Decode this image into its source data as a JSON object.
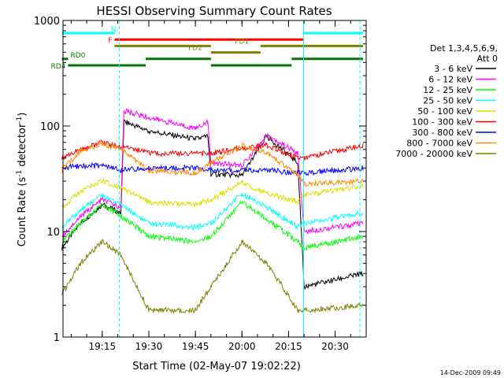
{
  "chart_data": {
    "type": "line",
    "title": "HESSI Observing Summary Count Rates",
    "xlabel": "Start Time (02-May-07 19:02:22)",
    "ylabel_main": "Count Rate (s",
    "ylabel_sup1": "-1",
    "ylabel_mid": " detector",
    "ylabel_sup2": "-1",
    "ylabel_end": ")",
    "yscale": "log",
    "ylim": [
      1,
      1000
    ],
    "xlim": [
      "19:02:22",
      "20:40:00"
    ],
    "x_ticks": [
      "19:15",
      "19:30",
      "19:45",
      "20:00",
      "20:15",
      "20:30"
    ],
    "y_ticks": [
      "1",
      "10",
      "100",
      "1000"
    ],
    "grid": false,
    "legend_position": "right",
    "legend_header": [
      "Det 1,3,4,5,6,9,",
      "Att 0"
    ],
    "series": [
      {
        "name": "3 - 6 keV",
        "color": "#000000",
        "x": [
          "19:02",
          "19:08",
          "19:15",
          "19:21",
          "19:22",
          "19:30",
          "19:45",
          "19:49",
          "19:50",
          "20:00",
          "20:08",
          "20:18",
          "20:20",
          "20:39"
        ],
        "values": [
          7,
          12,
          18,
          15,
          110,
          90,
          75,
          80,
          35,
          34,
          80,
          45,
          3,
          4
        ]
      },
      {
        "name": "6 - 12 keV",
        "color": "#ff00ff",
        "x": [
          "19:02",
          "19:08",
          "19:15",
          "19:21",
          "19:22",
          "19:30",
          "19:45",
          "19:49",
          "19:50",
          "20:00",
          "20:08",
          "20:18",
          "20:20",
          "20:39"
        ],
        "values": [
          9,
          14,
          20,
          17,
          140,
          120,
          95,
          110,
          45,
          42,
          82,
          55,
          10,
          12
        ]
      },
      {
        "name": "12 - 25 keV",
        "color": "#00ff00",
        "x": [
          "19:02",
          "19:08",
          "19:15",
          "19:21",
          "19:30",
          "19:45",
          "19:50",
          "20:00",
          "20:08",
          "20:18",
          "20:20",
          "20:39"
        ],
        "values": [
          8,
          12,
          18,
          14,
          9,
          8,
          9,
          19,
          13,
          8,
          7,
          9
        ]
      },
      {
        "name": "25 - 50 keV",
        "color": "#00ffff",
        "x": [
          "19:02",
          "19:08",
          "19:15",
          "19:21",
          "19:30",
          "19:45",
          "19:50",
          "20:00",
          "20:08",
          "20:18",
          "20:20",
          "20:39"
        ],
        "values": [
          11,
          16,
          22,
          18,
          12,
          11,
          12,
          23,
          17,
          11,
          12,
          15
        ]
      },
      {
        "name": "50 - 100 keV",
        "color": "#dddd00",
        "x": [
          "19:02",
          "19:08",
          "19:15",
          "19:21",
          "19:30",
          "19:45",
          "19:50",
          "20:00",
          "20:08",
          "20:18",
          "20:20",
          "20:39"
        ],
        "values": [
          17,
          24,
          30,
          26,
          19,
          18,
          20,
          29,
          23,
          19,
          22,
          27
        ]
      },
      {
        "name": "100 - 300 keV",
        "color": "#ff0000",
        "x": [
          "19:02",
          "19:08",
          "19:15",
          "19:21",
          "19:22",
          "19:30",
          "19:45",
          "19:50",
          "20:00",
          "20:08",
          "20:18",
          "20:20",
          "20:39"
        ],
        "values": [
          50,
          60,
          70,
          62,
          65,
          55,
          55,
          55,
          62,
          65,
          50,
          50,
          65
        ]
      },
      {
        "name": "300 - 800 keV",
        "color": "#0000ff",
        "x": [
          "19:02",
          "19:08",
          "19:15",
          "19:21",
          "19:30",
          "19:45",
          "19:50",
          "20:00",
          "20:08",
          "20:18",
          "20:20",
          "20:39"
        ],
        "values": [
          40,
          42,
          42,
          38,
          40,
          40,
          38,
          38,
          38,
          36,
          36,
          40
        ]
      },
      {
        "name": "800 - 7000 keV",
        "color": "#ff8800",
        "x": [
          "19:02",
          "19:08",
          "19:15",
          "19:21",
          "19:30",
          "19:45",
          "19:50",
          "20:00",
          "20:08",
          "20:18",
          "20:20",
          "20:39"
        ],
        "values": [
          38,
          58,
          68,
          60,
          38,
          36,
          45,
          65,
          55,
          35,
          28,
          30
        ]
      },
      {
        "name": "7000 - 20000 keV",
        "color": "#808000",
        "x": [
          "19:02",
          "19:08",
          "19:15",
          "19:21",
          "19:30",
          "19:45",
          "19:50",
          "20:00",
          "20:08",
          "20:18",
          "20:20",
          "20:39"
        ],
        "values": [
          2.5,
          5,
          8,
          6,
          1.8,
          1.8,
          3,
          8,
          5,
          1.8,
          1.8,
          2
        ]
      }
    ],
    "annotations": [
      {
        "label": "N",
        "color": "#00ffff",
        "row": 0,
        "label_at": "19:17",
        "label_side": "right",
        "segments": [
          [
            "19:02",
            "19:19"
          ],
          [
            "20:20",
            "20:39"
          ]
        ]
      },
      {
        "label": "F",
        "color": "#ff0000",
        "row": 1,
        "label_at": "19:19",
        "label_side": "left",
        "segments": [
          [
            "19:19",
            "20:20"
          ]
        ]
      },
      {
        "label": "FD1",
        "color": "#808000",
        "row": 2,
        "label_at": "20:00",
        "label_side": "center",
        "segments": [
          [
            "19:19",
            "19:50"
          ],
          [
            "20:06",
            "20:39"
          ]
        ]
      },
      {
        "label": "FD2",
        "color": "#808000",
        "row": 3,
        "label_at": "19:45",
        "label_side": "center",
        "segments": [
          [
            "19:50",
            "20:06"
          ]
        ]
      },
      {
        "label": "RD0",
        "color": "#007700",
        "row": 4,
        "label_at": "19:04",
        "label_side": "right",
        "segments": [
          [
            "19:02",
            "19:04"
          ],
          [
            "19:29",
            "19:50"
          ],
          [
            "20:16",
            "20:39"
          ]
        ]
      },
      {
        "label": "RD4",
        "color": "#007700",
        "row": 5,
        "label_at": "19:04",
        "label_side": "left",
        "segments": [
          [
            "19:04",
            "19:29"
          ],
          [
            "19:50",
            "20:16"
          ]
        ]
      }
    ],
    "vertical_lines": [
      {
        "x": "19:02:22",
        "style": "solid",
        "color": "#00ffff"
      },
      {
        "x": "19:20:30",
        "style": "dashed",
        "color": "#00ffff"
      },
      {
        "x": "20:19:50",
        "style": "solid",
        "color": "#00ffff"
      },
      {
        "x": "20:38:00",
        "style": "dashed",
        "color": "#00ffff"
      }
    ]
  },
  "footer_date": "14-Dec-2009 09:49"
}
